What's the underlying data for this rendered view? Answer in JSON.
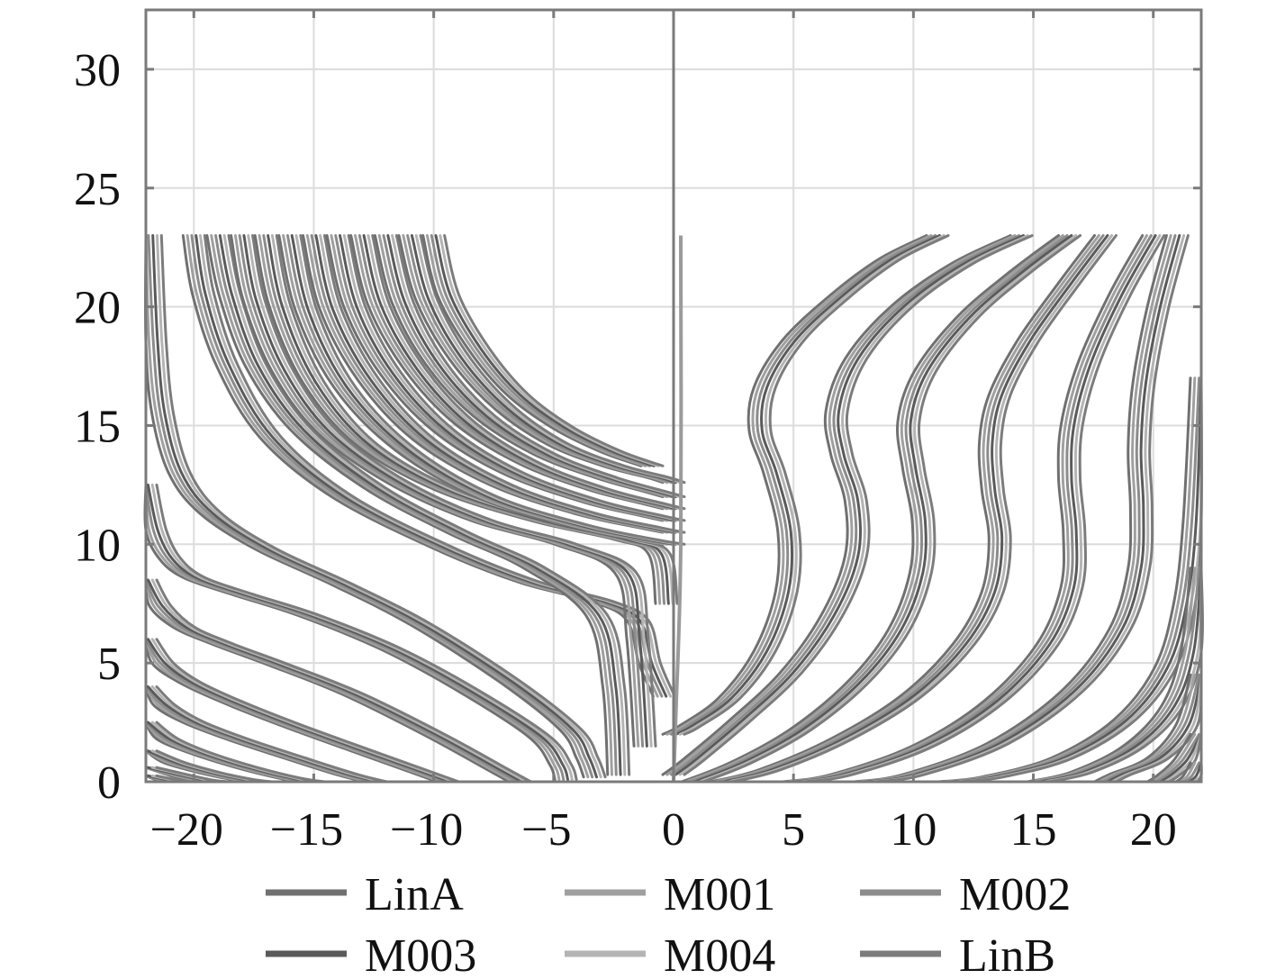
{
  "chart_data": {
    "type": "line",
    "title": "",
    "xlabel": "",
    "ylabel": "",
    "xlim": [
      -22,
      22
    ],
    "ylim": [
      0,
      32.5
    ],
    "grid": true,
    "x_ticks": [
      -20,
      -15,
      -10,
      -5,
      0,
      5,
      10,
      15,
      20
    ],
    "x_tick_labels": [
      "−20",
      "−15",
      "−10",
      "−5",
      "0",
      "5",
      "10",
      "15",
      "20"
    ],
    "y_ticks": [
      0,
      5,
      10,
      15,
      20,
      25,
      30
    ],
    "y_tick_labels": [
      "0",
      "5",
      "10",
      "15",
      "20",
      "25",
      "30"
    ],
    "legend_position": "bottom",
    "series": [
      {
        "name": "LinA",
        "color": "#707070"
      },
      {
        "name": "M001",
        "color": "#a0a0a0"
      },
      {
        "name": "M002",
        "color": "#8c8c8c"
      },
      {
        "name": "M003",
        "color": "#5a5a5a"
      },
      {
        "name": "M004",
        "color": "#b4b4b4"
      },
      {
        "name": "LinB",
        "color": "#7c7c7c"
      }
    ],
    "trajectories": {
      "left_upper_end": [
        {
          "x": [
            -20.0,
            -19.6,
            -18.6,
            -16.8,
            -13.8,
            -9.5,
            -6.0,
            -3.0,
            -1.5,
            -1.0,
            -0.4
          ],
          "y": [
            23,
            20.5,
            17.5,
            14.5,
            12.0,
            9.8,
            8.4,
            7.6,
            6.8,
            5.0,
            3.6
          ]
        },
        {
          "x": [
            -19.0,
            -18.5,
            -17.4,
            -15.5,
            -12.5,
            -9.0,
            -5.8,
            -3.2,
            -2.5,
            -2.3
          ],
          "y": [
            23,
            20.5,
            17.5,
            14.8,
            12.4,
            10.5,
            9.0,
            7.0,
            4.0,
            0.3
          ]
        },
        {
          "x": [
            -18.0,
            -17.5,
            -16.3,
            -14.4,
            -11.5,
            -8.0,
            -4.5,
            -2.0,
            -1.5,
            -1.2
          ],
          "y": [
            23,
            20.3,
            17.3,
            14.7,
            12.6,
            11.0,
            10.0,
            8.8,
            6.0,
            1.5
          ]
        },
        {
          "x": [
            -17.0,
            -16.4,
            -15.0,
            -12.8,
            -9.5,
            -5.5,
            -2.0,
            -0.6,
            -0.3
          ],
          "y": [
            23,
            20.0,
            16.8,
            14.2,
            12.3,
            11.0,
            10.2,
            9.6,
            7.5
          ]
        },
        {
          "x": [
            -16.0,
            -15.3,
            -13.7,
            -11.2,
            -7.8,
            -4.0,
            -1.2,
            0.0
          ],
          "y": [
            23,
            19.8,
            16.6,
            14.0,
            12.0,
            10.8,
            10.2,
            10.0
          ]
        },
        {
          "x": [
            -15.0,
            -14.3,
            -12.7,
            -10.4,
            -7.2,
            -3.7,
            -1.0,
            0.0
          ],
          "y": [
            23,
            19.9,
            16.9,
            14.4,
            12.5,
            11.3,
            10.7,
            10.5
          ]
        },
        {
          "x": [
            -14.0,
            -13.3,
            -11.8,
            -9.6,
            -6.7,
            -3.4,
            -0.9,
            0.0
          ],
          "y": [
            23,
            20.0,
            17.2,
            14.8,
            13.0,
            11.8,
            11.2,
            11.0
          ]
        },
        {
          "x": [
            -13.0,
            -12.3,
            -10.8,
            -8.7,
            -6.0,
            -3.1,
            -0.8,
            0.0
          ],
          "y": [
            23,
            20.1,
            17.4,
            15.1,
            13.4,
            12.3,
            11.7,
            11.5
          ]
        },
        {
          "x": [
            -12.0,
            -11.3,
            -9.9,
            -7.9,
            -5.4,
            -2.8,
            -0.7,
            0.0
          ],
          "y": [
            23,
            20.2,
            17.6,
            15.4,
            13.8,
            12.8,
            12.2,
            12.0
          ]
        },
        {
          "x": [
            -11.0,
            -10.3,
            -8.9,
            -7.0,
            -4.8,
            -2.5,
            -0.6,
            0.0
          ],
          "y": [
            23,
            20.3,
            17.8,
            15.7,
            14.2,
            13.3,
            12.8,
            12.6
          ]
        },
        {
          "x": [
            -10.0,
            -9.4,
            -8.1,
            -6.5,
            -4.6,
            -2.6,
            -0.9
          ],
          "y": [
            23,
            20.5,
            18.2,
            16.3,
            14.9,
            13.9,
            13.3
          ]
        }
      ],
      "left_lower_end": [
        {
          "x": [
            -21.8,
            -21.6,
            -21.3,
            -20.6,
            -19.3,
            -17.0,
            -13.8,
            -10.5,
            -6.8,
            -4.3,
            -3.6,
            -3.3
          ],
          "y": [
            23,
            18.5,
            15.5,
            13.0,
            11.3,
            9.8,
            8.3,
            6.6,
            4.2,
            2.2,
            1.0,
            0.2
          ]
        },
        {
          "x": [
            -22.0,
            -21.6,
            -21.0,
            -20.0,
            -18.0,
            -15.2,
            -11.8,
            -8.5,
            -5.6,
            -4.7,
            -4.5
          ],
          "y": [
            12.5,
            10.6,
            9.4,
            8.6,
            7.9,
            7.0,
            5.6,
            3.8,
            1.9,
            0.7,
            0.1
          ]
        },
        {
          "x": [
            -22.0,
            -21.4,
            -20.4,
            -18.8,
            -16.4,
            -13.4,
            -10.0,
            -7.3,
            -6.4
          ],
          "y": [
            8.5,
            7.4,
            6.5,
            5.8,
            4.9,
            3.7,
            2.0,
            0.5,
            0.0
          ]
        },
        {
          "x": [
            -22.0,
            -21.3,
            -20.2,
            -18.5,
            -16.0,
            -13.0,
            -10.5,
            -9.4
          ],
          "y": [
            6.0,
            5.0,
            4.2,
            3.4,
            2.4,
            1.3,
            0.4,
            0.0
          ]
        },
        {
          "x": [
            -22.0,
            -21.2,
            -20.0,
            -18.2,
            -15.8,
            -13.6,
            -12.4
          ],
          "y": [
            4.0,
            3.2,
            2.5,
            1.8,
            1.0,
            0.3,
            0.0
          ]
        },
        {
          "x": [
            -22.0,
            -21.1,
            -19.7,
            -17.8,
            -16.0,
            -15.0
          ],
          "y": [
            2.5,
            1.8,
            1.2,
            0.6,
            0.15,
            0.0
          ]
        },
        {
          "x": [
            -22.0,
            -20.8,
            -19.2,
            -18.0,
            -17.2
          ],
          "y": [
            1.3,
            0.8,
            0.35,
            0.1,
            0.0
          ]
        },
        {
          "x": [
            -22.0,
            -20.5,
            -19.6,
            -19.0
          ],
          "y": [
            0.6,
            0.25,
            0.06,
            0.0
          ]
        },
        {
          "x": [
            -22.0,
            -21.0,
            -20.4
          ],
          "y": [
            0.25,
            0.05,
            0.0
          ]
        }
      ],
      "right_s_curves": [
        {
          "x": [
            11.0,
            9.0,
            7.0,
            5.0,
            3.8,
            3.6,
            4.2,
            4.8,
            4.7,
            3.8,
            2.3,
            0.6,
            0.0
          ],
          "y": [
            23,
            22.0,
            20.5,
            18.6,
            16.6,
            14.8,
            13.0,
            10.5,
            8.0,
            5.5,
            3.5,
            2.3,
            2.0
          ]
        },
        {
          "x": [
            14.5,
            12.0,
            9.5,
            7.6,
            6.8,
            7.0,
            7.6,
            7.6,
            6.6,
            4.9,
            2.8,
            0.8,
            0.0
          ],
          "y": [
            23,
            21.8,
            20.0,
            17.8,
            15.6,
            13.8,
            11.8,
            9.5,
            7.0,
            4.6,
            2.6,
            0.9,
            0.3
          ]
        },
        {
          "x": [
            16.5,
            14.5,
            12.3,
            10.5,
            9.8,
            10.0,
            10.4,
            10.3,
            9.4,
            7.7,
            5.3,
            2.8,
            0.8
          ],
          "y": [
            23,
            21.5,
            19.6,
            17.3,
            15.2,
            13.2,
            11.0,
            8.8,
            6.4,
            4.2,
            2.2,
            0.8,
            0.0
          ]
        },
        {
          "x": [
            18.0,
            16.5,
            14.8,
            13.6,
            13.2,
            13.3,
            13.6,
            13.3,
            12.1,
            9.9,
            7.0,
            4.0,
            2.0
          ],
          "y": [
            23,
            21.0,
            18.6,
            16.3,
            14.3,
            12.3,
            10.2,
            8.0,
            5.8,
            3.6,
            1.8,
            0.5,
            0.0
          ]
        },
        {
          "x": [
            20.0,
            18.6,
            17.3,
            16.6,
            16.5,
            16.7,
            16.6,
            15.6,
            13.4,
            10.4,
            7.0,
            5.0
          ],
          "y": [
            23,
            20.5,
            17.6,
            15.0,
            12.8,
            10.5,
            8.2,
            5.8,
            3.4,
            1.5,
            0.3,
            0.0
          ]
        },
        {
          "x": [
            21.0,
            20.2,
            19.6,
            19.4,
            19.5,
            19.4,
            18.6,
            16.6,
            13.5,
            10.0,
            8.0
          ],
          "y": [
            23,
            20.0,
            16.8,
            14.0,
            11.5,
            9.0,
            6.4,
            3.8,
            1.6,
            0.3,
            0.0
          ]
        },
        {
          "x": [
            22.0,
            21.7,
            21.3,
            20.5,
            18.8,
            16.2,
            13.3,
            11.5
          ],
          "y": [
            17.0,
            11.0,
            7.5,
            4.8,
            2.6,
            1.0,
            0.2,
            0.0
          ]
        },
        {
          "x": [
            22.0,
            21.6,
            20.8,
            19.2,
            17.0,
            15.2
          ],
          "y": [
            9.0,
            5.5,
            3.2,
            1.5,
            0.4,
            0.0
          ]
        },
        {
          "x": [
            22.0,
            21.4,
            20.2,
            18.6,
            18.0
          ],
          "y": [
            4.5,
            2.4,
            1.0,
            0.3,
            0.0
          ]
        },
        {
          "x": [
            22.0,
            21.3,
            20.6,
            20.2
          ],
          "y": [
            2.0,
            0.9,
            0.25,
            0.0
          ]
        },
        {
          "x": [
            22.0,
            21.7,
            21.4
          ],
          "y": [
            0.8,
            0.25,
            0.0
          ]
        }
      ],
      "center_line": {
        "x": [
          0.3,
          0.3,
          0.1,
          0.0
        ],
        "y": [
          23,
          10,
          3,
          0
        ]
      }
    }
  }
}
